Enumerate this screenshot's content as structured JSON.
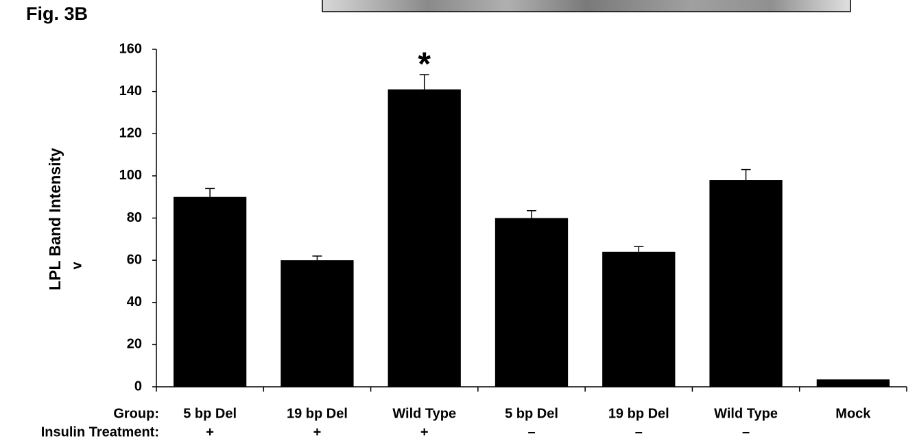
{
  "chart_data": {
    "type": "bar",
    "title": "Fig. 3B",
    "y_label": "LPL Band Intensity",
    "y_label_sub": "v",
    "row_labels": [
      "Group:",
      "Insulin Treatment:"
    ],
    "categories": [
      "5 bp Del",
      "19 bp Del",
      "Wild Type",
      "5 bp Del",
      "19 bp Del",
      "Wild Type",
      "Mock"
    ],
    "insulin": [
      "+",
      "+",
      "+",
      "–",
      "–",
      "–",
      null
    ],
    "values": [
      90,
      60,
      141,
      80,
      64,
      98,
      3.5
    ],
    "errors": [
      4,
      2,
      7,
      3.5,
      2.5,
      5,
      null
    ],
    "significance": [
      null,
      null,
      "*",
      null,
      null,
      null,
      null
    ],
    "color": "#000000",
    "ylim": [
      0,
      160
    ],
    "yticks": [
      0,
      20,
      40,
      60,
      80,
      100,
      120,
      140,
      160
    ],
    "grid": false
  }
}
